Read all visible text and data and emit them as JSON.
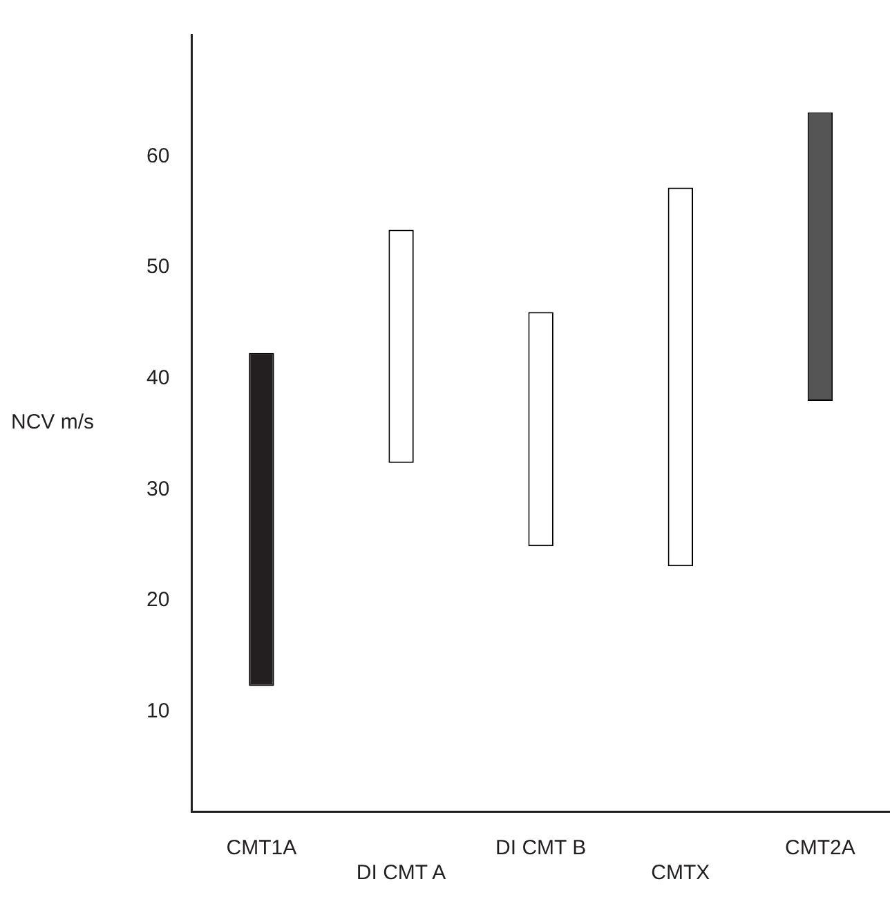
{
  "chart_data": {
    "type": "bar",
    "ylabel": "NCV m/s",
    "categories": [
      "CMT1A",
      "DI CMT A",
      "DI CMT B",
      "CMTX",
      "CMT2A"
    ],
    "base": [
      12.3,
      32.4,
      24.9,
      23.1,
      38.0
    ],
    "values": [
      30.0,
      21.0,
      21.1,
      34.1,
      26.0
    ],
    "colors": [
      "#231f20",
      "#ffffff",
      "#ffffff",
      "#ffffff",
      "#555555"
    ],
    "ylim": [
      1,
      71
    ],
    "yticks": [
      10,
      20,
      30,
      40,
      50,
      60
    ],
    "grid": false,
    "legend": false
  }
}
